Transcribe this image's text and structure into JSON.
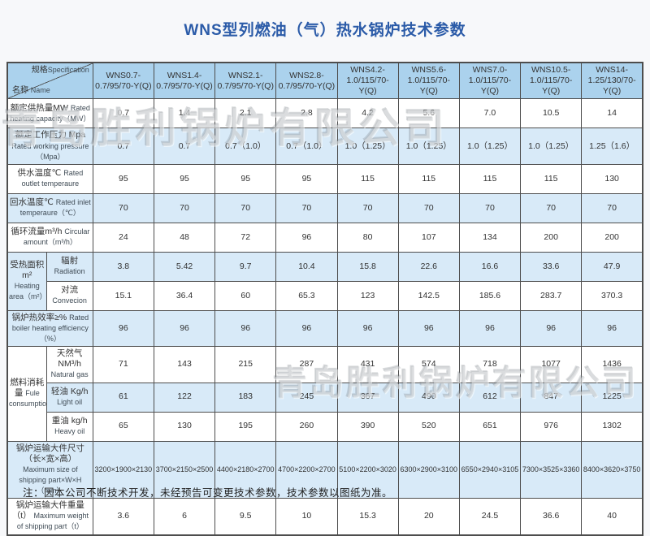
{
  "page": {
    "title": "WNS型列燃油（气）热水锅炉技术参数",
    "note": "注：因本公司不断技术开发，未经预告可变更技术参数，技术参数以图纸为准。",
    "watermark": "青岛胜利锅炉有限公司",
    "colors": {
      "title_blue": "#2b5ba8",
      "header_blue": "#abd2ed",
      "row_shade_blue": "#d8eaf8",
      "border_grey": "#4d4d4d"
    }
  },
  "table": {
    "corner": {
      "spec_zh": "规格",
      "spec_en": "Specification",
      "name_zh": "名称",
      "name_en": "Name"
    },
    "models": [
      "WNS0.7-\n0.7/95/70-Y(Q)",
      "WNS1.4-\n0.7/95/70-Y(Q)",
      "WNS2.1-\n0.7/95/70-Y(Q)",
      "WNS2.8-\n0.7/95/70-Y(Q)",
      "WNS4.2-\n1.0/115/70-Y(Q)",
      "WNS5.6-\n1.0/115/70-Y(Q)",
      "WNS7.0-\n1.0/115/70-Y(Q)",
      "WNS10.5-\n1.0/115/70-Y(Q)",
      "WNS14-\n1.25/130/70-Y(Q)"
    ],
    "rows": [
      {
        "label": {
          "zh": "额定供热量MW",
          "en": "Rated heating capacity（MW）"
        },
        "shaded": false,
        "values": [
          "0.7",
          "1.4",
          "2.1",
          "2.8",
          "4.2",
          "5.6",
          "7.0",
          "10.5",
          "14"
        ]
      },
      {
        "label": {
          "zh": "额定工作压力 Mpa",
          "en": "Rated working pressure（Mpa）"
        },
        "shaded": true,
        "values": [
          "0.7",
          "0.7",
          "0.7（1.0）",
          "0.7（1.0）",
          "1.0（1.25）",
          "1.0（1.25）",
          "1.0（1.25）",
          "1.0（1.25）",
          "1.25（1.6）"
        ]
      },
      {
        "label": {
          "zh": "供水温度℃",
          "en": "Rated outlet  temperaure"
        },
        "shaded": false,
        "values": [
          "95",
          "95",
          "95",
          "95",
          "115",
          "115",
          "115",
          "115",
          "130"
        ]
      },
      {
        "label": {
          "zh": "回水温度℃",
          "en": "Rated inlet temperaure（℃）"
        },
        "shaded": true,
        "values": [
          "70",
          "70",
          "70",
          "70",
          "70",
          "70",
          "70",
          "70",
          "70"
        ]
      },
      {
        "label": {
          "zh": "循环流量m³/h",
          "en": "Circular amount（m³/h）"
        },
        "shaded": false,
        "values": [
          "24",
          "48",
          "72",
          "96",
          "80",
          "107",
          "134",
          "200",
          "200"
        ]
      },
      {
        "group": {
          "zh": "受热面积m²",
          "en": "Heating area（m²）",
          "span": 2
        },
        "sub": {
          "zh": "辐射",
          "en": "Radiation"
        },
        "shaded": true,
        "values": [
          "3.8",
          "5.42",
          "9.7",
          "10.4",
          "15.8",
          "22.6",
          "16.6",
          "33.6",
          "47.9"
        ]
      },
      {
        "sub": {
          "zh": "对流",
          "en": "Convecion"
        },
        "shaded": false,
        "values": [
          "15.1",
          "36.4",
          "60",
          "65.3",
          "123",
          "142.5",
          "185.6",
          "283.7",
          "370.3"
        ]
      },
      {
        "label": {
          "zh": "锅炉热效率≥%",
          "en": "Rated boiler heating efficiency（%）"
        },
        "shaded": true,
        "values": [
          "96",
          "96",
          "96",
          "96",
          "96",
          "96",
          "96",
          "96",
          "96"
        ]
      },
      {
        "group": {
          "zh": "燃料消耗量",
          "en": "Fule consumption",
          "span": 3
        },
        "sub": {
          "zh": "天然气NM³/h",
          "en": "Natural gas"
        },
        "shaded": false,
        "values": [
          "71",
          "143",
          "215",
          "287",
          "431",
          "574",
          "718",
          "1077",
          "1436"
        ]
      },
      {
        "sub": {
          "zh": "轻油 Kg/h",
          "en": "Light oil"
        },
        "shaded": true,
        "values": [
          "61",
          "122",
          "183",
          "245",
          "367",
          "490",
          "612",
          "847",
          "1225"
        ]
      },
      {
        "sub": {
          "zh": "重油 kg/h",
          "en": "Heavy  oil"
        },
        "shaded": false,
        "values": [
          "65",
          "130",
          "195",
          "260",
          "390",
          "520",
          "651",
          "976",
          "1302"
        ]
      },
      {
        "label": {
          "zh": "锅炉运输大件尺寸（长×宽×高）",
          "en": "Maximum size of shipping part×W×H（mm）"
        },
        "shaded": true,
        "values": [
          "3200×1900×2130",
          "3700×2150×2500",
          "4400×2180×2700",
          "4700×2200×2700",
          "5100×2200×3020",
          "6300×2900×3100",
          "6550×2940×3105",
          "7300×3525×3360",
          "8400×3620×3750"
        ]
      },
      {
        "label": {
          "zh": "锅炉运输大件重量（t）",
          "en": "Maximum weight of shipping part（t）"
        },
        "shaded": false,
        "values": [
          "3.6",
          "6",
          "9.5",
          "10",
          "15.3",
          "20",
          "24.5",
          "36.6",
          "40"
        ]
      }
    ]
  }
}
